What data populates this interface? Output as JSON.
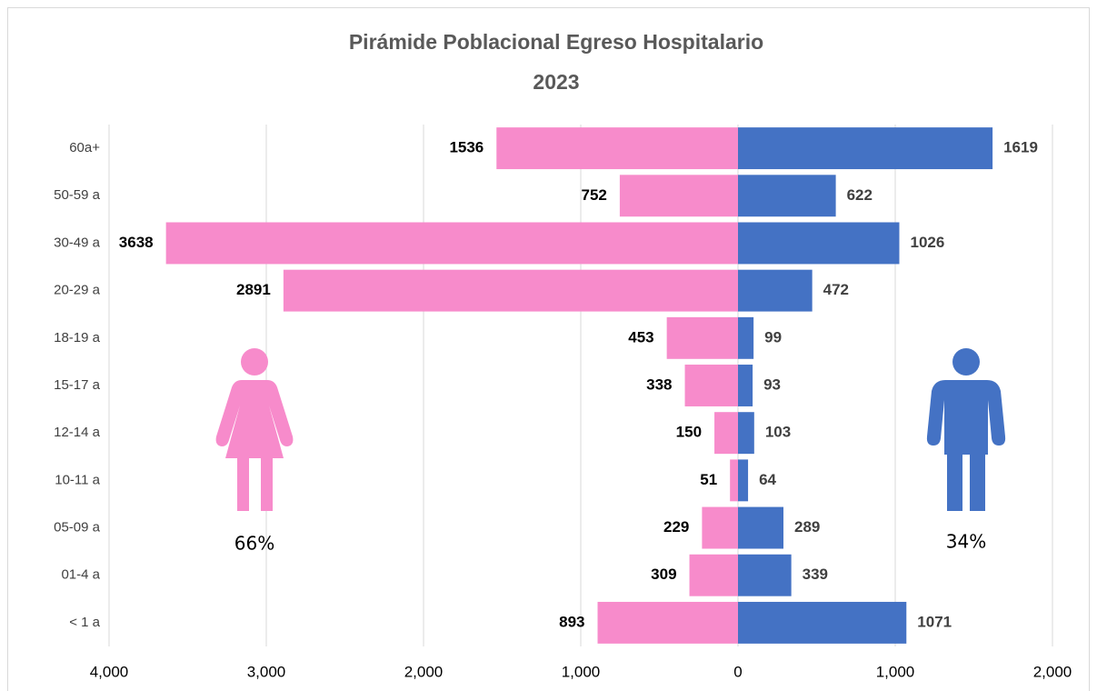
{
  "chart_data": {
    "type": "pyramid",
    "title": "Pirámide Poblacional Egreso Hospitalario",
    "subtitle": "2023",
    "categories": [
      "60a+",
      "50-59 a",
      "30-49 a",
      "20-29 a",
      "18-19 a",
      "15-17 a",
      "12-14 a",
      "10-11 a",
      "05-09 a",
      "01-4 a",
      "< 1 a"
    ],
    "series": [
      {
        "color": "#F78BCB",
        "label_color": "#000000",
        "values": [
          -1536,
          -752,
          -3638,
          -2891,
          -453,
          -338,
          -150,
          -51,
          -229,
          -309,
          -893
        ],
        "value_labels": [
          "1536",
          "752",
          "3638",
          "2891",
          "453",
          "338",
          "150",
          "51",
          "229",
          "309",
          "893"
        ]
      },
      {
        "color": "#4472C4",
        "label_color": "#404040",
        "values": [
          1619,
          622,
          1026,
          472,
          99,
          93,
          103,
          64,
          289,
          339,
          1071
        ]
      }
    ],
    "annotations": [
      "66%",
      "34%"
    ],
    "xlim": [
      -4000,
      2000
    ],
    "xticks": [
      {
        "value": -4000,
        "label": "4,000"
      },
      {
        "value": -3000,
        "label": "3,000"
      },
      {
        "value": -2000,
        "label": "2,000"
      },
      {
        "value": -1000,
        "label": "1,000"
      },
      0,
      {
        "value": 1000,
        "label": "1,000"
      },
      {
        "value": 2000,
        "label": "2,000"
      }
    ],
    "grid": true
  }
}
